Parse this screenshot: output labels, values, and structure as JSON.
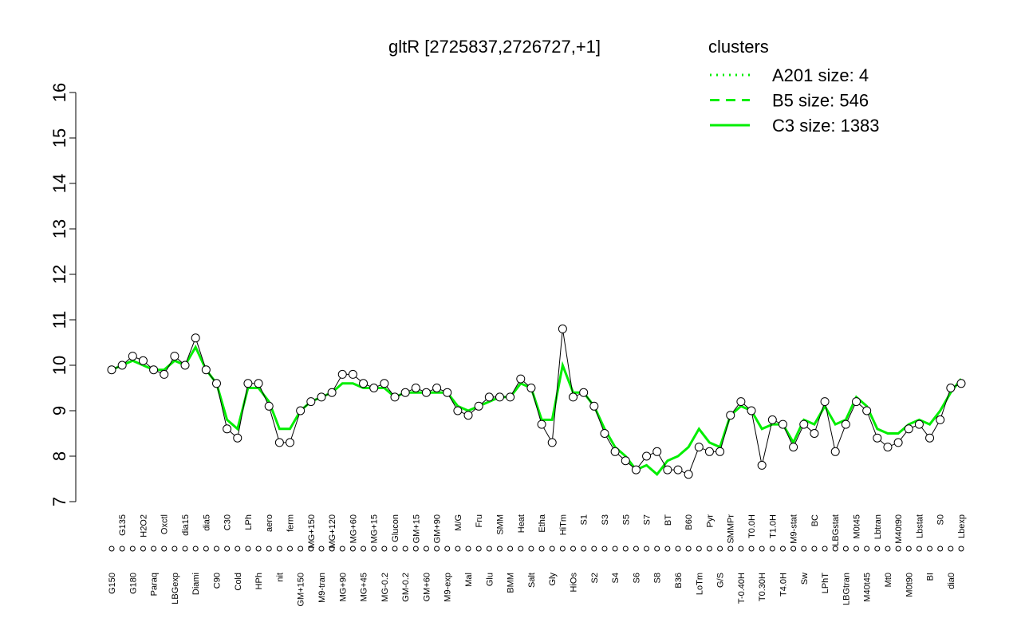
{
  "chart_data": {
    "type": "line",
    "title": "gltR [2725837,2726727,+1]",
    "legend_title": "clusters",
    "legend_color": "#00ee00",
    "categories": [
      "G150",
      "G135",
      "G180",
      "H2O2",
      "Paraq",
      "Oxctl",
      "LBGexp",
      "dia15",
      "Diami",
      "dia5",
      "C90",
      "C30",
      "Cold",
      "LPh",
      "HPh",
      "aero",
      "nit",
      "ferm",
      "GM+150",
      "MG+150",
      "M9-tran",
      "MG+120",
      "MG+90",
      "MG+60",
      "MG+45",
      "MG+15",
      "MG-0.2",
      "Glucon",
      "GM-0.2",
      "GM+15",
      "GM+60",
      "GM+90",
      "M9-exp",
      "M/G",
      "Mal",
      "Fru",
      "Glu",
      "SMM",
      "BMM",
      "Heat",
      "Salt",
      "Etha",
      "Gly",
      "HiTm",
      "HiOs",
      "S1",
      "S2",
      "S3",
      "S4",
      "S5",
      "S6",
      "S7",
      "S8",
      "BT",
      "B36",
      "B60",
      "LoTm",
      "Pyr",
      "G/S",
      "SMMPr",
      "T-0.40H",
      "T0.0H",
      "T0.30H",
      "T1.0H",
      "T4.0H",
      "M9-stat",
      "Sw",
      "BC",
      "LPhT",
      "LBGstat",
      "LBGtran",
      "M0t45",
      "M40t45",
      "Lbtran",
      "Mt0",
      "M40t90",
      "M0t90",
      "Lbstat",
      "BI",
      "S0",
      "dia0",
      "Lbexp"
    ],
    "values": [
      9.9,
      10.0,
      10.2,
      10.1,
      9.9,
      9.8,
      10.2,
      10.0,
      10.6,
      9.9,
      9.6,
      8.6,
      8.4,
      9.6,
      9.6,
      9.1,
      8.3,
      8.3,
      9.0,
      9.2,
      9.3,
      9.4,
      9.8,
      9.8,
      9.6,
      9.5,
      9.6,
      9.3,
      9.4,
      9.5,
      9.4,
      9.5,
      9.4,
      9.0,
      8.9,
      9.1,
      9.3,
      9.3,
      9.3,
      9.7,
      9.5,
      8.7,
      8.3,
      10.8,
      9.3,
      9.4,
      9.1,
      8.5,
      8.1,
      7.9,
      7.7,
      8.0,
      8.1,
      7.7,
      7.7,
      7.6,
      8.2,
      8.1,
      8.1,
      8.9,
      9.2,
      9.0,
      7.8,
      8.8,
      8.7,
      8.2,
      8.7,
      8.5,
      9.2,
      8.1,
      8.7,
      9.2,
      9.0,
      8.4,
      8.2,
      8.3,
      8.6,
      8.7,
      8.4,
      8.8,
      9.5,
      9.6
    ],
    "color": "#000000",
    "series": [
      {
        "name": "A201 size: 4",
        "color": "#00ee00",
        "dash": "dotted",
        "values": [
          null,
          null,
          null,
          null,
          null,
          null,
          null,
          null,
          null,
          null,
          null,
          null,
          null,
          null,
          null,
          null,
          null,
          null,
          null,
          null,
          null,
          null,
          null,
          null,
          null,
          null,
          null,
          null,
          null,
          null,
          null,
          null,
          null,
          null,
          null,
          null,
          null,
          null,
          null,
          null,
          null,
          null,
          null,
          null,
          null,
          null,
          null,
          null,
          null,
          null,
          null,
          null,
          null,
          null,
          null,
          null,
          null,
          null,
          null,
          null,
          null,
          null,
          null,
          null,
          null,
          null,
          null,
          null,
          null,
          null,
          null,
          null,
          null,
          null,
          null,
          null,
          null,
          null,
          null,
          null,
          null,
          null
        ]
      },
      {
        "name": "B5 size: 546",
        "color": "#00ee00",
        "dash": "dashed",
        "values": [
          null,
          null,
          null,
          null,
          null,
          null,
          null,
          null,
          null,
          null,
          null,
          null,
          null,
          null,
          null,
          null,
          null,
          null,
          null,
          null,
          null,
          null,
          null,
          null,
          null,
          null,
          null,
          null,
          null,
          null,
          null,
          null,
          null,
          null,
          null,
          null,
          null,
          null,
          null,
          null,
          null,
          null,
          null,
          null,
          null,
          null,
          null,
          null,
          null,
          null,
          null,
          null,
          null,
          null,
          null,
          null,
          null,
          null,
          null,
          null,
          null,
          null,
          null,
          null,
          null,
          null,
          null,
          null,
          null,
          null,
          null,
          null,
          null,
          null,
          null,
          null,
          null,
          null,
          null,
          null,
          null,
          null
        ]
      },
      {
        "name": "C3 size: 1383",
        "color": "#00ee00",
        "dash": "solid",
        "values": [
          9.9,
          10.0,
          10.1,
          10.0,
          9.9,
          9.9,
          10.1,
          10.0,
          10.4,
          9.9,
          9.6,
          8.8,
          8.6,
          9.5,
          9.5,
          9.2,
          8.6,
          8.6,
          9.0,
          9.2,
          9.3,
          9.4,
          9.6,
          9.6,
          9.5,
          9.5,
          9.5,
          9.3,
          9.4,
          9.4,
          9.4,
          9.4,
          9.4,
          9.1,
          9.0,
          9.1,
          9.2,
          9.3,
          9.3,
          9.6,
          9.5,
          8.8,
          8.8,
          10.0,
          9.4,
          9.4,
          9.1,
          8.6,
          8.2,
          8.0,
          7.7,
          7.8,
          7.6,
          7.9,
          8.0,
          8.2,
          8.6,
          8.3,
          8.2,
          8.9,
          9.1,
          9.0,
          8.6,
          8.7,
          8.7,
          8.3,
          8.8,
          8.7,
          9.1,
          8.7,
          8.8,
          9.3,
          9.1,
          8.6,
          8.5,
          8.5,
          8.7,
          8.8,
          8.7,
          9.0,
          9.4,
          9.7
        ]
      }
    ],
    "ylim": [
      7,
      16
    ],
    "yticks": [
      7,
      8,
      9,
      10,
      11,
      12,
      13,
      14,
      15,
      16
    ]
  }
}
